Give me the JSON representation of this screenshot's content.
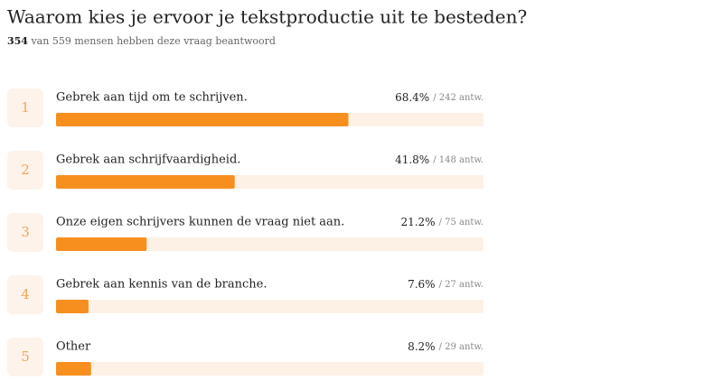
{
  "chart_data": {
    "type": "bar",
    "title": "Waarom kies je ervoor je tekstproductie uit te besteden?",
    "subtitle_count": "354",
    "subtitle": "van 559 mensen hebben deze vraag beantwoord",
    "ranks": [
      "1",
      "2",
      "3",
      "4",
      "5"
    ],
    "categories": [
      "Gebrek aan tijd om te schrijven.",
      "Gebrek aan schrijfvaardigheid.",
      "Onze eigen schrijvers kunnen de vraag niet aan.",
      "Gebrek aan kennis van de branche.",
      "Other"
    ],
    "values": [
      68.4,
      41.8,
      21.2,
      7.6,
      8.2
    ],
    "value_labels": [
      "68.4%",
      "41.8%",
      "21.2%",
      "7.6%",
      "8.2%"
    ],
    "answer_labels": [
      "/ 242 antw.",
      "/ 148 antw.",
      "/ 75 antw.",
      "/ 27 antw.",
      "/ 29 antw."
    ],
    "color": "#f78f1e",
    "xlim": [
      0,
      100
    ]
  }
}
